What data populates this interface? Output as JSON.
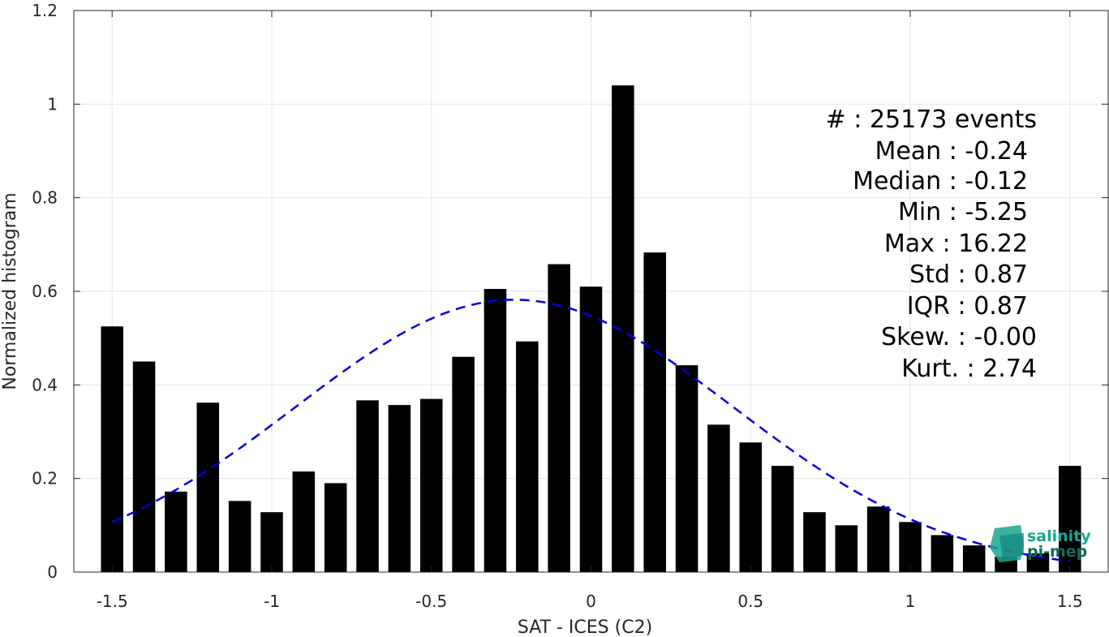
{
  "chart_data": {
    "type": "bar",
    "xlabel": "SAT - ICES (C2)",
    "ylabel": "Normalized histogram",
    "xlim": [
      -1.62,
      1.62
    ],
    "ylim": [
      0,
      1.2
    ],
    "xticks": [
      -1.5,
      -1,
      -0.5,
      0,
      0.5,
      1,
      1.5
    ],
    "xtick_labels": [
      "-1.5",
      "-1",
      "-0.5",
      "0",
      "0.5",
      "1",
      "1.5"
    ],
    "yticks": [
      0,
      0.2,
      0.4,
      0.6,
      0.8,
      1,
      1.2
    ],
    "ytick_labels": [
      "0",
      "0.2",
      "0.4",
      "0.6",
      "0.8",
      "1",
      "1.2"
    ],
    "grid": true,
    "bar_color": "#000000",
    "bar_width": 0.07,
    "x": [
      -1.5,
      -1.4,
      -1.3,
      -1.2,
      -1.1,
      -1.0,
      -0.9,
      -0.8,
      -0.7,
      -0.6,
      -0.5,
      -0.4,
      -0.3,
      -0.2,
      -0.1,
      0.0,
      0.1,
      0.2,
      0.3,
      0.4,
      0.5,
      0.6,
      0.7,
      0.8,
      0.9,
      1.0,
      1.1,
      1.2,
      1.3,
      1.4,
      1.5
    ],
    "values": [
      0.525,
      0.45,
      0.172,
      0.362,
      0.152,
      0.128,
      0.215,
      0.19,
      0.367,
      0.357,
      0.37,
      0.46,
      0.605,
      0.493,
      0.658,
      0.61,
      1.04,
      0.683,
      0.442,
      0.315,
      0.277,
      0.227,
      0.128,
      0.1,
      0.14,
      0.107,
      0.079,
      0.057,
      0.033,
      0.04,
      0.227
    ],
    "fit_curve": {
      "type": "normal",
      "color": "#0000e0",
      "style": "dashed",
      "mean": -0.24,
      "std": 0.685,
      "peak": 0.582,
      "x_range": [
        -1.5,
        1.5
      ]
    },
    "stats": {
      "events": "#  : 25173 events",
      "mean": "Mean : -0.24",
      "median": "Median : -0.12",
      "min": "Min : -5.25",
      "max": "Max : 16.22",
      "std": "Std : 0.87",
      "iqr": "IQR : 0.87",
      "skew": "Skew. : -0.00",
      "kurt": "Kurt. : 2.74"
    }
  },
  "logo": {
    "line1": "salinity",
    "line2": "pi-mep",
    "color_primary": "#1aa58f",
    "color_dark": "#0e6b5e"
  }
}
